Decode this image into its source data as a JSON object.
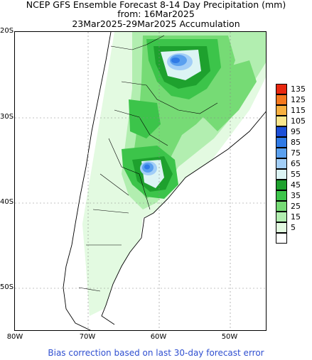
{
  "title": {
    "line1": "NCEP GFS Ensemble Forecast 8-14 Day Precipitation (mm)",
    "line2": "from: 16Mar2025",
    "line3": "23Mar2025-29Mar2025 Accumulation"
  },
  "axes": {
    "lat_labels": [
      "20S",
      "30S",
      "40S",
      "50S"
    ],
    "lon_labels": [
      "80W",
      "70W",
      "60W",
      "50W"
    ]
  },
  "legend": {
    "entries": [
      {
        "label": "135",
        "color": "#e8280f"
      },
      {
        "label": "125",
        "color": "#f5781e"
      },
      {
        "label": "115",
        "color": "#f8b040"
      },
      {
        "label": "105",
        "color": "#fbe68c"
      },
      {
        "label": "95",
        "color": "#1c4fd7"
      },
      {
        "label": "85",
        "color": "#2f7ae6"
      },
      {
        "label": "75",
        "color": "#5aa0ef"
      },
      {
        "label": "65",
        "color": "#a2cef7"
      },
      {
        "label": "55",
        "color": "#dcf4f4"
      },
      {
        "label": "45",
        "color": "#1ea12e"
      },
      {
        "label": "35",
        "color": "#3cc44a"
      },
      {
        "label": "25",
        "color": "#76db75"
      },
      {
        "label": "15",
        "color": "#b2eeb0"
      },
      {
        "label": "5",
        "color": "#e3fae1"
      },
      {
        "label": "",
        "color": "#ffffff"
      }
    ]
  },
  "footer": "Bias correction based on last 30-day forecast error"
}
